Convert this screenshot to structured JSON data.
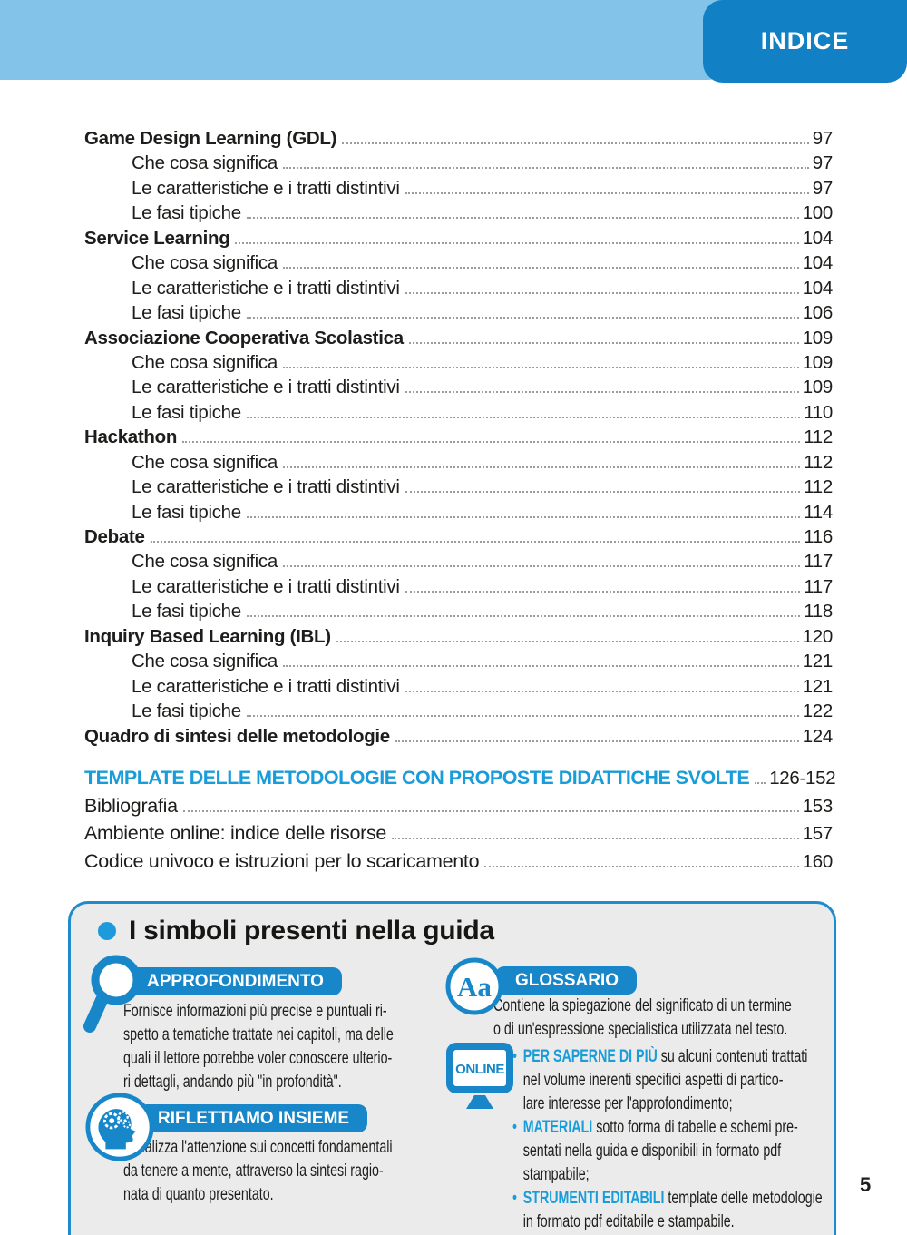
{
  "header": {
    "title": "INDICE"
  },
  "toc": {
    "entries": [
      {
        "label": "Game Design Learning (GDL)",
        "page": "97",
        "level": 1,
        "bold": true
      },
      {
        "label": "Che cosa significa",
        "page": "97",
        "level": 2,
        "bold": false
      },
      {
        "label": "Le caratteristiche e i tratti distintivi",
        "page": "97",
        "level": 2,
        "bold": false
      },
      {
        "label": "Le fasi tipiche",
        "page": "100",
        "level": 2,
        "bold": false
      },
      {
        "label": "Service Learning",
        "page": "104",
        "level": 1,
        "bold": true
      },
      {
        "label": "Che cosa significa",
        "page": "104",
        "level": 2,
        "bold": false
      },
      {
        "label": "Le caratteristiche e i tratti distintivi",
        "page": "104",
        "level": 2,
        "bold": false
      },
      {
        "label": "Le fasi tipiche",
        "page": "106",
        "level": 2,
        "bold": false
      },
      {
        "label": "Associazione Cooperativa Scolastica",
        "page": "109",
        "level": 1,
        "bold": true
      },
      {
        "label": "Che cosa significa",
        "page": "109",
        "level": 2,
        "bold": false
      },
      {
        "label": "Le caratteristiche e i tratti distintivi",
        "page": "109",
        "level": 2,
        "bold": false
      },
      {
        "label": "Le fasi tipiche",
        "page": "110",
        "level": 2,
        "bold": false
      },
      {
        "label": "Hackathon",
        "page": "112",
        "level": 1,
        "bold": true
      },
      {
        "label": "Che cosa significa",
        "page": "112",
        "level": 2,
        "bold": false
      },
      {
        "label": "Le caratteristiche e i tratti distintivi",
        "page": "112",
        "level": 2,
        "bold": false
      },
      {
        "label": "Le fasi tipiche",
        "page": "114",
        "level": 2,
        "bold": false
      },
      {
        "label": "Debate",
        "page": "116",
        "level": 1,
        "bold": true
      },
      {
        "label": "Che cosa significa",
        "page": "117",
        "level": 2,
        "bold": false
      },
      {
        "label": "Le caratteristiche e i tratti distintivi",
        "page": "117",
        "level": 2,
        "bold": false
      },
      {
        "label": "Le fasi tipiche",
        "page": "118",
        "level": 2,
        "bold": false
      },
      {
        "label": "Inquiry Based Learning (IBL)",
        "page": "120",
        "level": 1,
        "bold": true
      },
      {
        "label": "Che cosa significa",
        "page": "121",
        "level": 2,
        "bold": false
      },
      {
        "label": "Le caratteristiche e i tratti distintivi",
        "page": "121",
        "level": 2,
        "bold": false
      },
      {
        "label": "Le fasi tipiche",
        "page": "122",
        "level": 2,
        "bold": false
      },
      {
        "label": "Quadro di sintesi delle metodologie",
        "page": "124",
        "level": 1,
        "bold": true
      }
    ],
    "extra_entries": [
      {
        "label": "TEMPLATE DELLE METODOLOGIE CON PROPOSTE DIDATTICHE SVOLTE",
        "page": "126-152",
        "style": "template"
      },
      {
        "label": "Bibliografia",
        "page": "153",
        "style": "extra"
      },
      {
        "label": "Ambiente online: indice delle risorse",
        "page": "157",
        "style": "extra"
      },
      {
        "label": "Codice univoco e istruzioni per lo scaricamento",
        "page": "160",
        "style": "extra"
      }
    ]
  },
  "legend": {
    "title": "I simboli presenti nella guida",
    "items": [
      {
        "label": "APPROFONDIMENTO",
        "icon": "magnifier-icon",
        "text": "Fornisce informazioni più precise e puntuali ri-\nspetto a tematiche trattate nei capitoli, ma delle\nquali il lettore potrebbe voler conoscere ulterio-\nri dettagli, andando più \"in profondità\"."
      },
      {
        "label": "RIFLETTIAMO INSIEME",
        "icon": "head-gears-icon",
        "text": "Focalizza l'attenzione sui concetti fondamentali\nda tenere a mente, attraverso la sintesi ragio-\nnata di quanto presentato."
      },
      {
        "label": "GLOSSARIO",
        "icon": "glossary-aa-icon",
        "icon_glyph": "Aa",
        "text": "Contiene la spiegazione del significato di un termine\no di un'espressione specialistica utilizzata nel testo."
      }
    ],
    "online": {
      "icon_label": "ONLINE",
      "bullets": [
        {
          "keyword": "PER SAPERNE DI PIÙ",
          "text": " su alcuni contenuti trattati\nnel volume inerenti specifici aspetti di partico-\nlare interesse per l'approfondimento;"
        },
        {
          "keyword": "MATERIALI",
          "text": " sotto forma di tabelle e schemi pre-\nsentati nella guida e disponibili in formato pdf\nstampabile;"
        },
        {
          "keyword": "STRUMENTI EDITABILI",
          "text": " template delle metodologie\nin formato pdf editabile e stampabile."
        }
      ]
    }
  },
  "page_number": "5",
  "colors": {
    "band_blue": "#83c2e9",
    "header_box_blue": "#1180c4",
    "accent_blue": "#1787c9",
    "keyword_blue": "#189cda",
    "box_background": "#ebebeb",
    "text": "#1d1d1b",
    "leader_dots": "#9c9c9c"
  }
}
